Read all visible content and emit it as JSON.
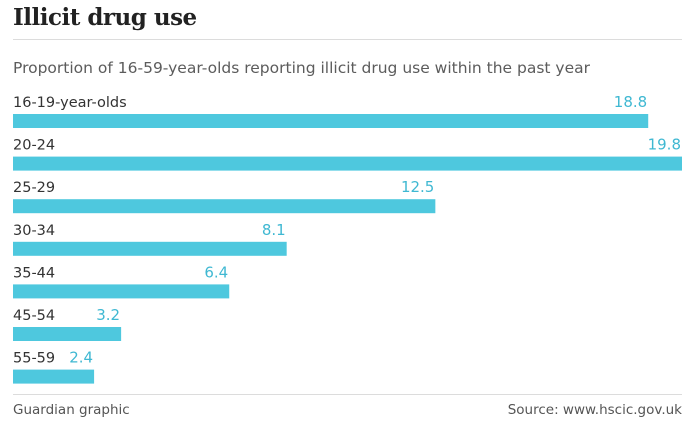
{
  "header": {
    "title": "Illicit drug use",
    "subtitle": "Proportion of 16-59-year-olds reporting illicit drug use within the past year"
  },
  "footer": {
    "credit": "Guardian graphic",
    "source": "Source: www.hscic.gov.uk"
  },
  "colors": {
    "bar": "#4ec8de",
    "value_label": "#3fb8d2",
    "category_label": "#333333"
  },
  "chart_data": {
    "type": "bar",
    "orientation": "horizontal",
    "categories": [
      "16-19-year-olds",
      "20-24",
      "25-29",
      "30-34",
      "35-44",
      "45-54",
      "55-59"
    ],
    "values": [
      18.8,
      19.8,
      12.5,
      8.1,
      6.4,
      3.2,
      2.4
    ],
    "value_labels": [
      "18.8",
      "19.8",
      "12.5",
      "8.1",
      "6.4",
      "3.2",
      "2.4"
    ],
    "title": "Illicit drug use",
    "subtitle": "Proportion of 16-59-year-olds reporting illicit drug use within the past year",
    "xlim": [
      0,
      19.8
    ],
    "grid": false,
    "legend": "none"
  }
}
